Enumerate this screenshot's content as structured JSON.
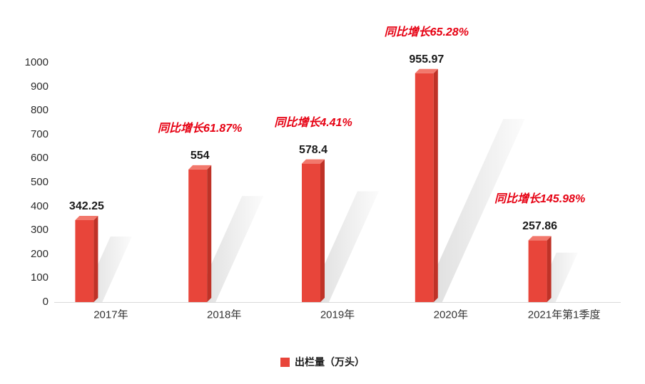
{
  "chart_data": {
    "type": "bar",
    "title": "",
    "xlabel": "",
    "ylabel": "",
    "categories": [
      "2017年",
      "2018年",
      "2019年",
      "2020年",
      "2021年第1季度"
    ],
    "values": [
      342.25,
      554,
      578.4,
      955.97,
      257.86
    ],
    "value_labels": [
      "342.25",
      "554",
      "578.4",
      "955.97",
      "257.86"
    ],
    "growth_labels": [
      null,
      "同比增长61.87%",
      "同比增长4.41%",
      "同比增长65.28%",
      "同比增长145.98%"
    ],
    "series_name": "出栏量（万头）",
    "ylim": [
      0,
      1000
    ],
    "ytick_step": 100,
    "grid": false,
    "legend_position": "bottom-center",
    "style": "3d-bars-with-cast-shadow",
    "colors": {
      "bar_front": "#e8453a",
      "bar_side": "#bf3227",
      "bar_top": "#f2786c",
      "shadow": "#bfbfbf",
      "annotation_red": "#e60012",
      "value_label": "#1a1a1a",
      "axis_text": "#2b2b2b",
      "baseline": "#d9d9d9",
      "background": "#ffffff"
    }
  }
}
